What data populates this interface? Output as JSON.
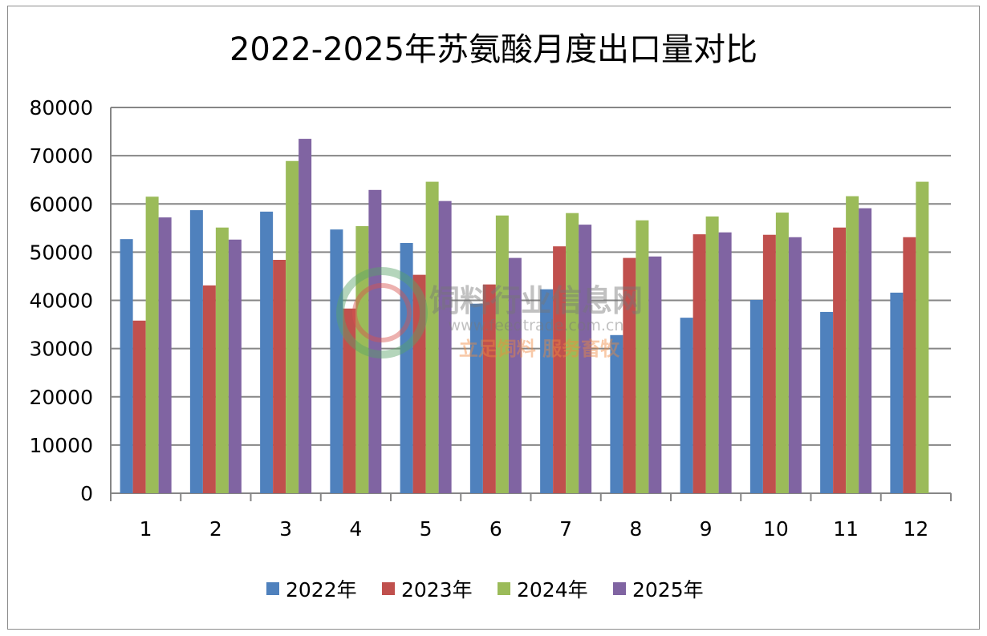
{
  "chart_data": {
    "type": "bar",
    "title": "2022-2025年苏氨酸月度出口量对比",
    "xlabel": "",
    "ylabel": "",
    "categories": [
      "1",
      "2",
      "3",
      "4",
      "5",
      "6",
      "7",
      "8",
      "9",
      "10",
      "11",
      "12"
    ],
    "ylim": [
      0,
      80000
    ],
    "yticks": [
      0,
      10000,
      20000,
      30000,
      40000,
      50000,
      60000,
      70000,
      80000
    ],
    "grid": true,
    "legend_position": "bottom",
    "series": [
      {
        "name": "2022年",
        "color": "#4f81bd",
        "values": [
          52700,
          58700,
          58400,
          54700,
          51900,
          39300,
          42300,
          32800,
          36400,
          40100,
          37600,
          41600
        ]
      },
      {
        "name": "2023年",
        "color": "#c0504d",
        "values": [
          35800,
          43100,
          48400,
          38300,
          45300,
          43300,
          51200,
          48800,
          53700,
          53600,
          55100,
          53100
        ]
      },
      {
        "name": "2024年",
        "color": "#9bbb59",
        "values": [
          61500,
          55100,
          68900,
          55400,
          64600,
          57600,
          58100,
          56600,
          57400,
          58200,
          61600,
          64600
        ]
      },
      {
        "name": "2025年",
        "color": "#8064a2",
        "values": [
          57200,
          52600,
          73500,
          62900,
          60600,
          48800,
          55700,
          49100,
          54100,
          53100,
          59100,
          null
        ]
      }
    ]
  },
  "watermark": {
    "name": "饲料行业信息网",
    "url": "www.feedtrade.com.cn",
    "slogan": "立足饲料  服务畜牧"
  }
}
